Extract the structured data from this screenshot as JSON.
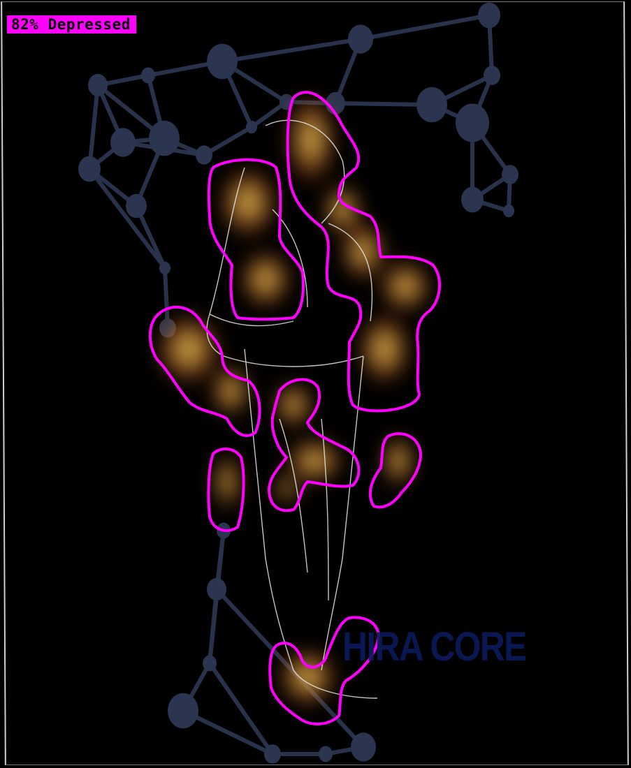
{
  "overlay": {
    "label": "82% Depressed",
    "highlight_color": "#ff00ff",
    "heat_colors": [
      "#8b1a0a",
      "#c85a14",
      "#d9c24a"
    ]
  },
  "background": {
    "watermark_text": "HIRA CORE",
    "network_color": "#2b3550",
    "sketch_color": "#e8e8e8"
  }
}
